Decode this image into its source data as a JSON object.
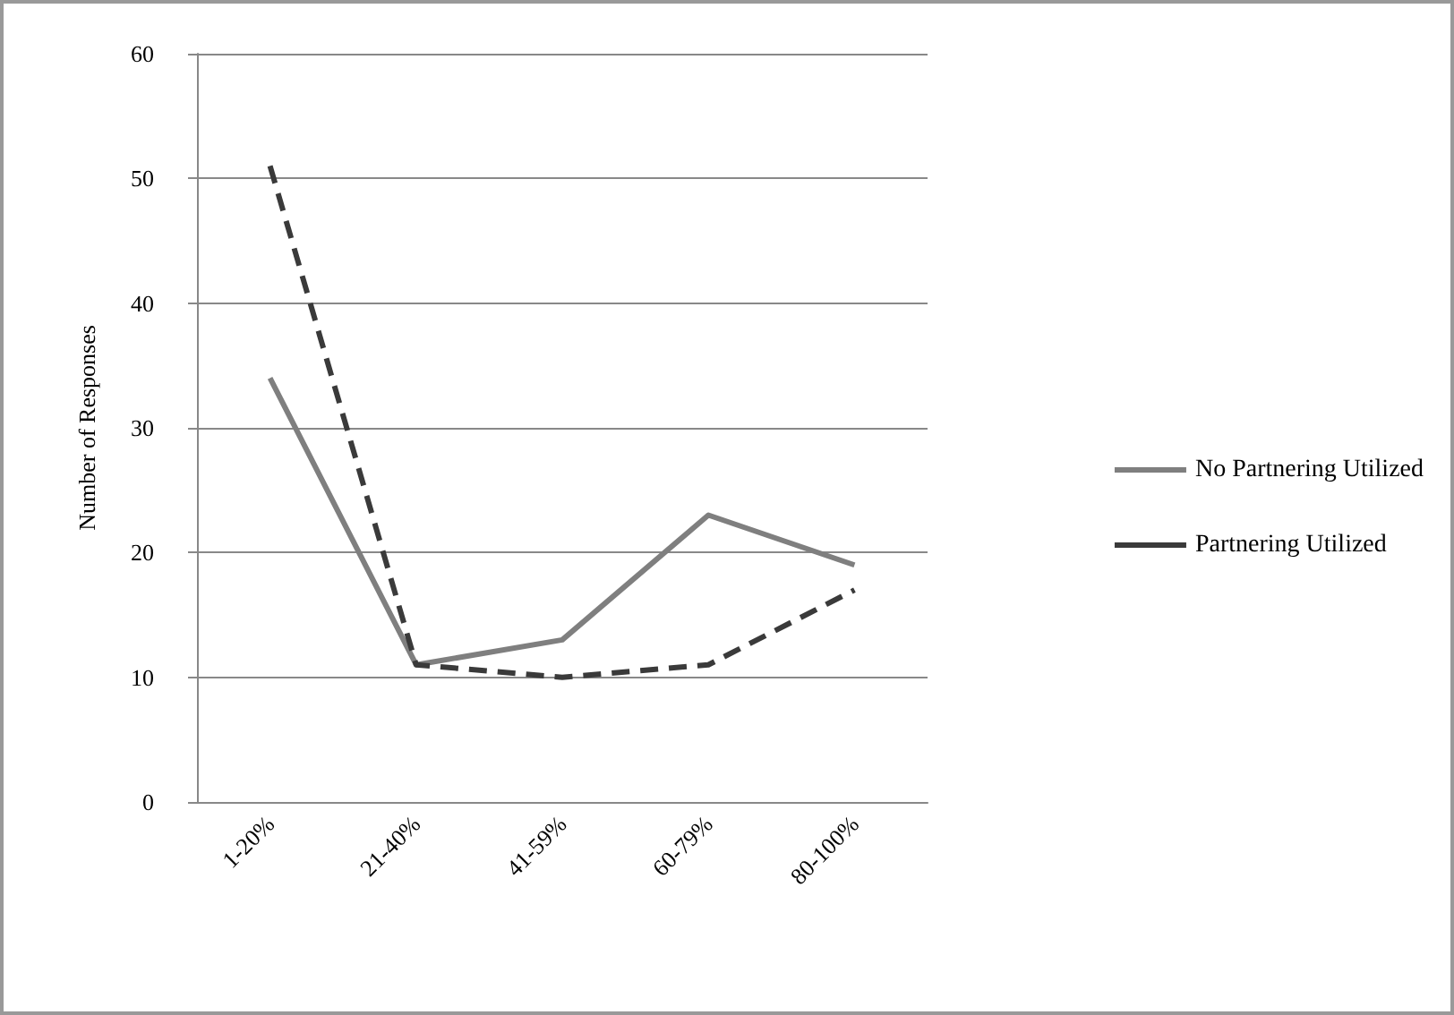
{
  "chart_data": {
    "type": "line",
    "ylabel": "Number of Responses",
    "categories": [
      "1-20%",
      "21-40%",
      "41-59%",
      "60-79%",
      "80-100%"
    ],
    "series": [
      {
        "name": "No Partnering Utilized",
        "color": "#7f7f7f",
        "values": [
          34,
          11,
          13,
          23,
          19
        ],
        "line_style": "solid"
      },
      {
        "name": "Partnering Utilized",
        "color": "#3a3a3a",
        "values": [
          51,
          11,
          10,
          11,
          17
        ],
        "line_style": "dashed"
      }
    ],
    "ylim": [
      0,
      60
    ],
    "yticks": [
      0,
      10,
      20,
      30,
      40,
      50,
      60
    ],
    "grid": "y",
    "legend": "right",
    "marker": "none"
  }
}
